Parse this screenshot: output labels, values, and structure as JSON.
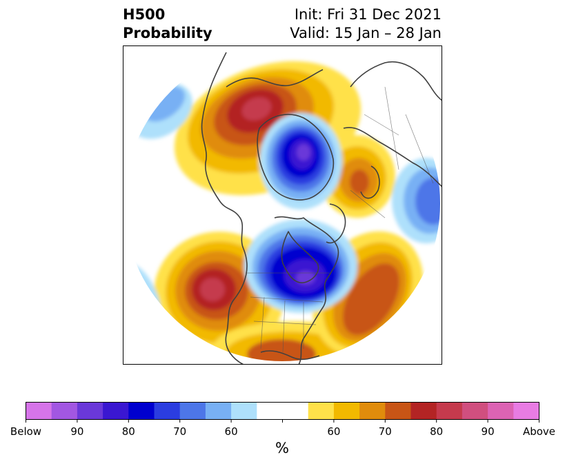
{
  "header": {
    "title_line1": "H500",
    "title_line2": "Probability",
    "init": "Init: Fri 31 Dec 2021",
    "valid": "Valid: 15 Jan – 28 Jan"
  },
  "colorbar": {
    "units": "%",
    "colors": [
      "#d674e9",
      "#a257e2",
      "#6a38d9",
      "#3a17d1",
      "#0000cf",
      "#2b3de0",
      "#4d76e8",
      "#78b0f4",
      "#aee0fb",
      "#ffffff",
      "#ffffff",
      "#ffe14a",
      "#f2b900",
      "#e08c0c",
      "#c85516",
      "#b32424",
      "#c53a4d",
      "#d04f7f",
      "#dc63b3",
      "#e87ce3"
    ],
    "labels": [
      "Below",
      "90",
      "80",
      "70",
      "60",
      "60",
      "70",
      "80",
      "90",
      "Above"
    ]
  },
  "map": {
    "projection": "north-polar-stereographic",
    "regions": [
      {
        "name": "below-normal-northern-canada",
        "sign": "below",
        "peak": 90
      },
      {
        "name": "below-normal-hudson-bay",
        "sign": "below",
        "peak": 90
      },
      {
        "name": "below-normal-east-asia",
        "sign": "below",
        "peak": 70
      },
      {
        "name": "below-normal-north-pacific-edge",
        "sign": "below",
        "peak": 60
      },
      {
        "name": "above-normal-north-pacific",
        "sign": "above",
        "peak": 90
      },
      {
        "name": "above-normal-north-atlantic",
        "sign": "above",
        "peak": 90
      },
      {
        "name": "above-normal-western-russia",
        "sign": "above",
        "peak": 70
      },
      {
        "name": "above-normal-south-us",
        "sign": "above",
        "peak": 70
      }
    ]
  }
}
